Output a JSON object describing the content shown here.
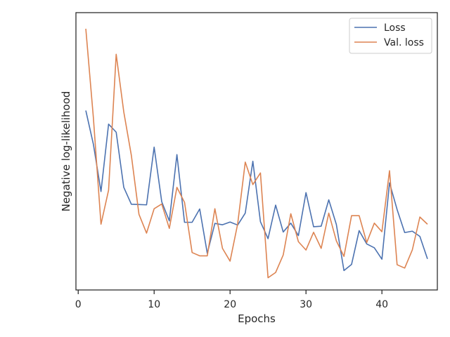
{
  "chart_data": {
    "type": "line",
    "xlabel": "Epochs",
    "ylabel": "Negative log-likelihood",
    "xlim": [
      -0.3,
      47.3
    ],
    "ylim": [
      0,
      100
    ],
    "xticks": [
      0,
      10,
      20,
      30,
      40
    ],
    "yticks_visible": false,
    "grid": false,
    "legend_position": "top-right",
    "x": [
      1,
      2,
      3,
      4,
      5,
      6,
      7,
      8,
      9,
      10,
      11,
      12,
      13,
      14,
      15,
      16,
      17,
      18,
      19,
      20,
      21,
      22,
      23,
      24,
      25,
      26,
      27,
      28,
      29,
      30,
      31,
      32,
      33,
      34,
      35,
      36,
      37,
      38,
      39,
      40,
      41,
      42,
      43,
      44,
      45,
      46
    ],
    "series": [
      {
        "name": "Loss",
        "color": "#4c72b0",
        "values": [
          64.7,
          52.5,
          35.5,
          59.8,
          56.9,
          37.0,
          30.9,
          30.8,
          30.7,
          51.5,
          31.8,
          24.9,
          48.8,
          24.4,
          24.4,
          29.2,
          13.2,
          24.0,
          23.5,
          24.5,
          23.4,
          27.7,
          46.4,
          24.6,
          18.5,
          30.6,
          20.9,
          24.1,
          19.6,
          35.1,
          22.8,
          23.0,
          32.5,
          23.6,
          7.0,
          9.2,
          21.4,
          16.6,
          15.2,
          11.1,
          38.6,
          29.0,
          20.7,
          21.2,
          19.3,
          11.2
        ]
      },
      {
        "name": "Val. loss",
        "color": "#dd8452",
        "values": [
          94.2,
          62.0,
          23.7,
          36.0,
          85.0,
          64.2,
          48.5,
          27.3,
          20.5,
          29.3,
          31.0,
          22.2,
          37.0,
          31.6,
          13.5,
          12.3,
          12.3,
          29.3,
          15.0,
          10.4,
          23.8,
          46.1,
          38.0,
          42.2,
          4.4,
          6.3,
          12.6,
          27.5,
          17.4,
          14.4,
          20.8,
          15.0,
          27.7,
          17.7,
          12.1,
          26.8,
          26.8,
          17.1,
          24.1,
          21.0,
          43.0,
          9.1,
          7.9,
          14.4,
          26.3,
          23.7
        ]
      }
    ]
  }
}
